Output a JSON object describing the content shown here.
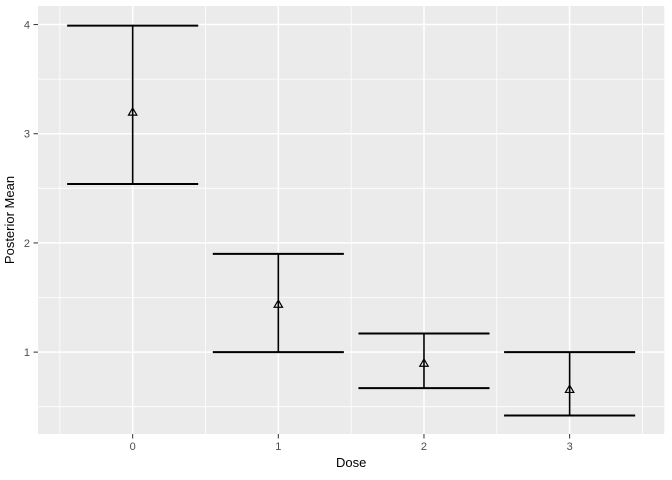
{
  "chart_data": {
    "type": "scatter",
    "subtype": "errorbar",
    "title": "",
    "xlabel": "Dose",
    "ylabel": "Posterior Mean",
    "x": [
      0,
      1,
      2,
      3
    ],
    "series": [
      {
        "name": "posterior-mean",
        "marker": "open-triangle-up",
        "means": [
          3.2,
          1.44,
          0.9,
          0.66
        ],
        "lower": [
          2.54,
          1.0,
          0.67,
          0.42
        ],
        "upper": [
          3.99,
          1.9,
          1.17,
          1.0
        ]
      }
    ],
    "errorbar_cap_halfwidth": 0.45,
    "x_ticks": [
      0,
      1,
      2,
      3
    ],
    "x_tick_labels": [
      "0",
      "1",
      "2",
      "3"
    ],
    "y_ticks": [
      1,
      2,
      3,
      4
    ],
    "y_tick_labels": [
      "1",
      "2",
      "3",
      "4"
    ],
    "x_minor_ticks": [
      -0.5,
      0.5,
      1.5,
      2.5,
      3.5
    ],
    "y_minor_ticks": [
      0.5,
      1.5,
      2.5,
      3.5
    ],
    "xlim": [
      -0.65,
      3.65
    ],
    "ylim": [
      0.25,
      4.17
    ],
    "grid": "major+minor",
    "legend": "none",
    "theme": "ggplot2-grey",
    "colors": {
      "figure_bg": "#FFFFFF",
      "panel_bg": "#EBEBEB",
      "grid": "#FFFFFF",
      "errorbar": "#000000",
      "marker_stroke": "#000000",
      "tick_mark": "#333333",
      "tick_label": "#4D4D4D",
      "axis_title": "#000000"
    }
  }
}
